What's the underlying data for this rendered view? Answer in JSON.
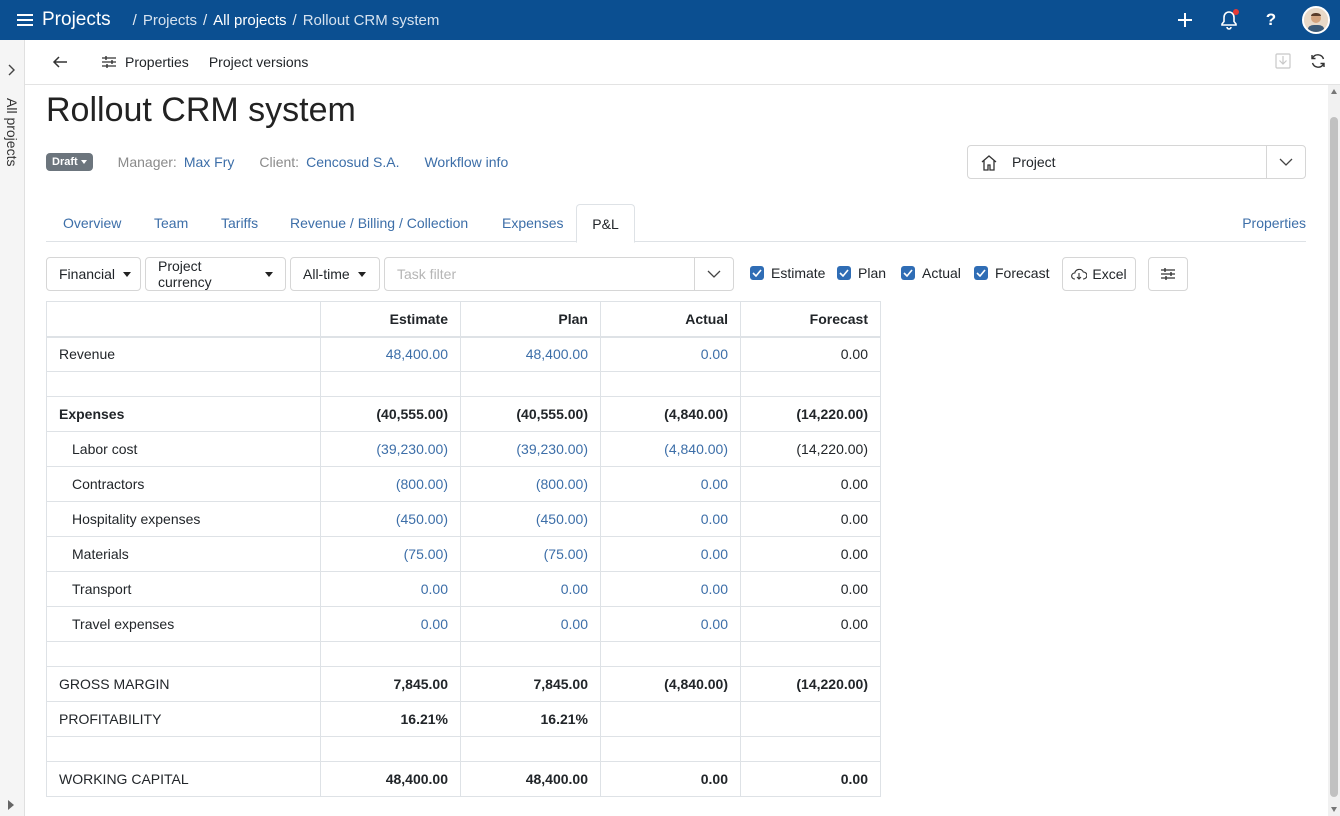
{
  "topbar": {
    "app_title": "Projects",
    "breadcrumb": [
      "Projects",
      "All projects",
      "Rollout CRM system"
    ]
  },
  "rail": {
    "label": "All projects"
  },
  "toolbar": {
    "properties": "Properties",
    "versions": "Project versions"
  },
  "project": {
    "title": "Rollout CRM system",
    "status": "Draft",
    "manager_label": "Manager:",
    "manager": "Max Fry",
    "client_label": "Client:",
    "client": "Cencosud S.A.",
    "workflow": "Workflow info",
    "view_select": "Project"
  },
  "tabs": [
    "Overview",
    "Team",
    "Tariffs",
    "Revenue / Billing / Collection",
    "Expenses",
    "P&L"
  ],
  "tab_right": "Properties",
  "filters": {
    "type": "Financial",
    "currency": "Project currency",
    "period": "All-time",
    "task_placeholder": "Task filter",
    "checkboxes": [
      "Estimate",
      "Plan",
      "Actual",
      "Forecast"
    ],
    "excel": "Excel"
  },
  "table": {
    "columns": [
      "",
      "Estimate",
      "Plan",
      "Actual",
      "Forecast"
    ],
    "rows": [
      {
        "name": "Revenue",
        "values": [
          "48,400.00",
          "48,400.00",
          "0.00",
          "0.00"
        ]
      },
      {
        "name": "",
        "values": [
          "",
          "",
          "",
          ""
        ]
      },
      {
        "name": "Expenses",
        "values": [
          "(40,555.00)",
          "(40,555.00)",
          "(4,840.00)",
          "(14,220.00)"
        ]
      },
      {
        "name": "Labor cost",
        "values": [
          "(39,230.00)",
          "(39,230.00)",
          "(4,840.00)",
          "(14,220.00)"
        ]
      },
      {
        "name": "Contractors",
        "values": [
          "(800.00)",
          "(800.00)",
          "0.00",
          "0.00"
        ]
      },
      {
        "name": "Hospitality expenses",
        "values": [
          "(450.00)",
          "(450.00)",
          "0.00",
          "0.00"
        ]
      },
      {
        "name": "Materials",
        "values": [
          "(75.00)",
          "(75.00)",
          "0.00",
          "0.00"
        ]
      },
      {
        "name": "Transport",
        "values": [
          "0.00",
          "0.00",
          "0.00",
          "0.00"
        ]
      },
      {
        "name": "Travel expenses",
        "values": [
          "0.00",
          "0.00",
          "0.00",
          "0.00"
        ]
      },
      {
        "name": "",
        "values": [
          "",
          "",
          "",
          ""
        ]
      },
      {
        "name": "GROSS MARGIN",
        "values": [
          "7,845.00",
          "7,845.00",
          "(4,840.00)",
          "(14,220.00)"
        ]
      },
      {
        "name": "PROFITABILITY",
        "values": [
          "16.21%",
          "16.21%",
          "",
          ""
        ]
      },
      {
        "name": "",
        "values": [
          "",
          "",
          "",
          ""
        ]
      },
      {
        "name": "WORKING CAPITAL",
        "values": [
          "48,400.00",
          "48,400.00",
          "0.00",
          "0.00"
        ]
      }
    ]
  },
  "colors": {
    "header": "#0b4f91",
    "link": "#3c6ea8",
    "checkbox": "#2f6db5"
  }
}
